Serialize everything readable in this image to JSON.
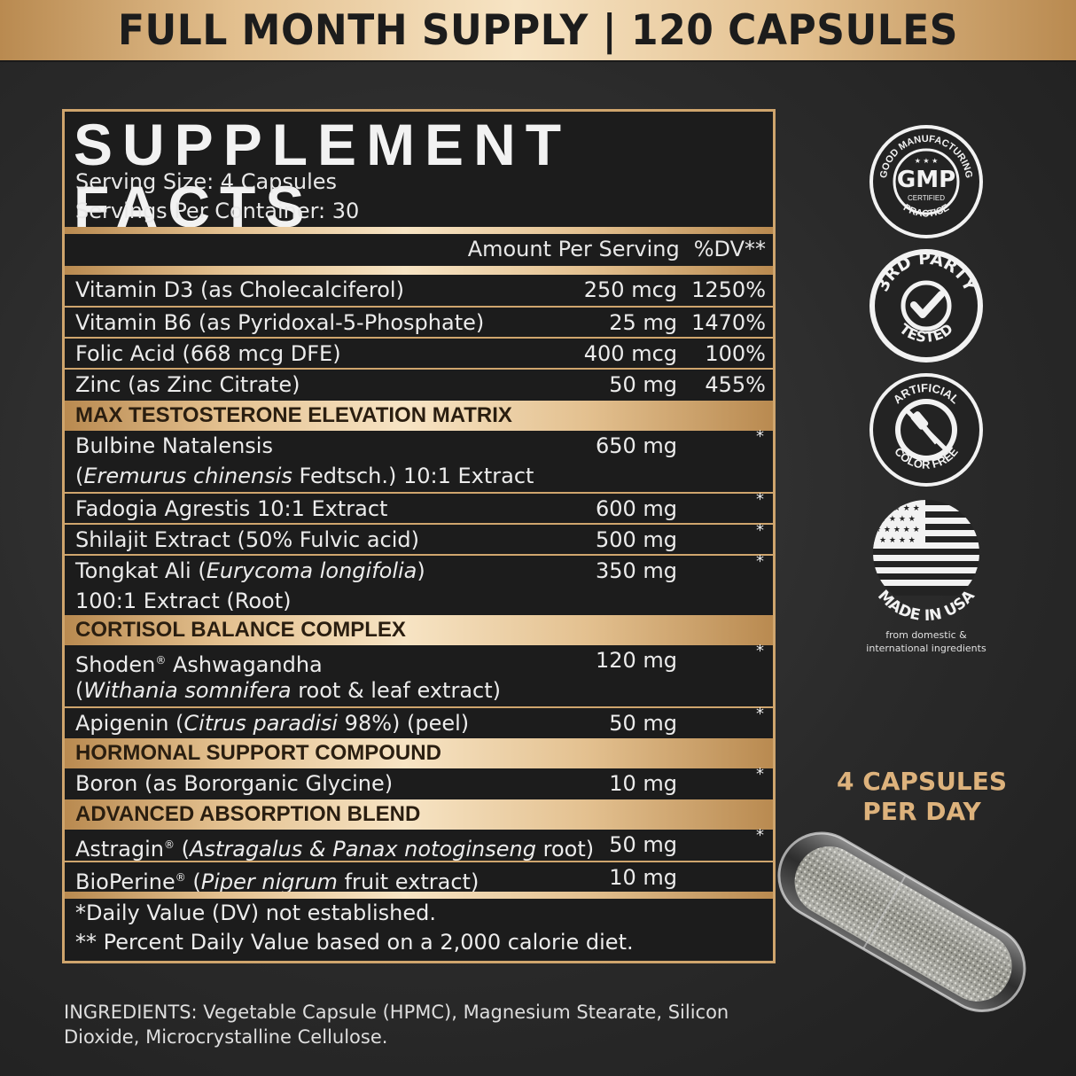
{
  "banner": {
    "text": "FULL MONTH SUPPLY | 120 CAPSULES"
  },
  "facts": {
    "title": "SUPPLEMENT FACTS",
    "serving_size": "Serving Size: 4 Capsules",
    "servings_per_container": "Servings Per Container: 30",
    "amount_header": "Amount Per Serving",
    "dv_header": "%DV**",
    "vitamins": [
      {
        "name": "Vitamin D3 (as Cholecalciferol)",
        "amount": "250 mcg",
        "dv": "1250%"
      },
      {
        "name": "Vitamin B6 (as Pyridoxal-5-Phosphate)",
        "amount": "25 mg",
        "dv": "1470%"
      },
      {
        "name": "Folic Acid (668 mcg DFE)",
        "amount": "400 mcg",
        "dv": "100%"
      },
      {
        "name": "Zinc (as Zinc Citrate)",
        "amount": "50 mg",
        "dv": "455%"
      }
    ],
    "sections": [
      {
        "title": "MAX TESTOSTERONE ELEVATION MATRIX",
        "items": [
          {
            "name": "Bulbine Natalensis",
            "line2_italic": "Eremurus chinensis",
            "line2_rest": " Fedtsch.) 10:1 Extract",
            "line2_prefix": "(",
            "amount": "650 mg",
            "dv": "*"
          },
          {
            "name": "Fadogia Agrestis 10:1 Extract",
            "amount": "600 mg",
            "dv": "*"
          },
          {
            "name": "Shilajit Extract (50% Fulvic acid)",
            "amount": "500 mg",
            "dv": "*"
          },
          {
            "name_prefix": "Tongkat Ali (",
            "name_italic": "Eurycoma longifolia",
            "name_suffix": ")",
            "line2": "100:1 Extract (Root)",
            "amount": "350 mg",
            "dv": "*"
          }
        ]
      },
      {
        "title": "CORTISOL BALANCE COMPLEX",
        "items": [
          {
            "name_prefix": "Shoden",
            "reg": "®",
            "name_suffix": " Ashwagandha",
            "line2_prefix": "(",
            "line2_italic": "Withania somnifera",
            "line2_rest": " root & leaf extract)",
            "amount": "120 mg",
            "dv": "*"
          },
          {
            "name_prefix": "Apigenin (",
            "name_italic": "Citrus paradisi",
            "name_suffix": " 98%) (peel)",
            "amount": "50 mg",
            "dv": "*"
          }
        ]
      },
      {
        "title": "HORMONAL SUPPORT COMPOUND",
        "items": [
          {
            "name": "Boron (as Bororganic Glycine)",
            "amount": "10 mg",
            "dv": "*"
          }
        ]
      },
      {
        "title": "ADVANCED ABSORPTION BLEND",
        "items": [
          {
            "name_prefix": "Astragin",
            "reg": "®",
            "name_mid": " (",
            "name_italic": "Astragalus & Panax notoginseng",
            "name_suffix": " root)",
            "amount": "50 mg",
            "dv": "*"
          },
          {
            "name_prefix": "BioPerine",
            "reg": "®",
            "name_mid": " (",
            "name_italic": "Piper nigrum",
            "name_suffix": " fruit extract)",
            "amount": "10 mg",
            "dv": ""
          }
        ]
      }
    ],
    "footnote1": "*Daily Value (DV) not established.",
    "footnote2": "** Percent Daily Value based on a 2,000 calorie diet."
  },
  "ingredients": {
    "line1": "INGREDIENTS: Vegetable Capsule (HPMC), Magnesium Stearate, Silicon",
    "line2": "Dioxide, Microcrystalline Cellulose."
  },
  "badges": {
    "gmp": {
      "ring_text": "GOOD MANUFACTURING PRACTICE",
      "center": "GMP",
      "sub": "CERTIFIED",
      "icon": "gmp-badge-icon"
    },
    "third_party": {
      "top": "3RD PARTY",
      "bottom": "TESTED",
      "icon": "checkmark-icon"
    },
    "artificial": {
      "top": "ARTIFICIAL",
      "bottom": "COLOR FREE",
      "icon": "no-dropper-icon"
    },
    "usa": {
      "text": "MADE IN USA",
      "caption1": "from domestic &",
      "caption2": "international ingredients",
      "icon": "us-flag-icon"
    }
  },
  "capsule_label": {
    "line1": "4 CAPSULES",
    "line2": "PER DAY"
  },
  "colors": {
    "gold": "#cfa56d",
    "gold_light": "#f7e4c4",
    "dark": "#1c1c1c",
    "accent_text": "#ddb27c"
  }
}
